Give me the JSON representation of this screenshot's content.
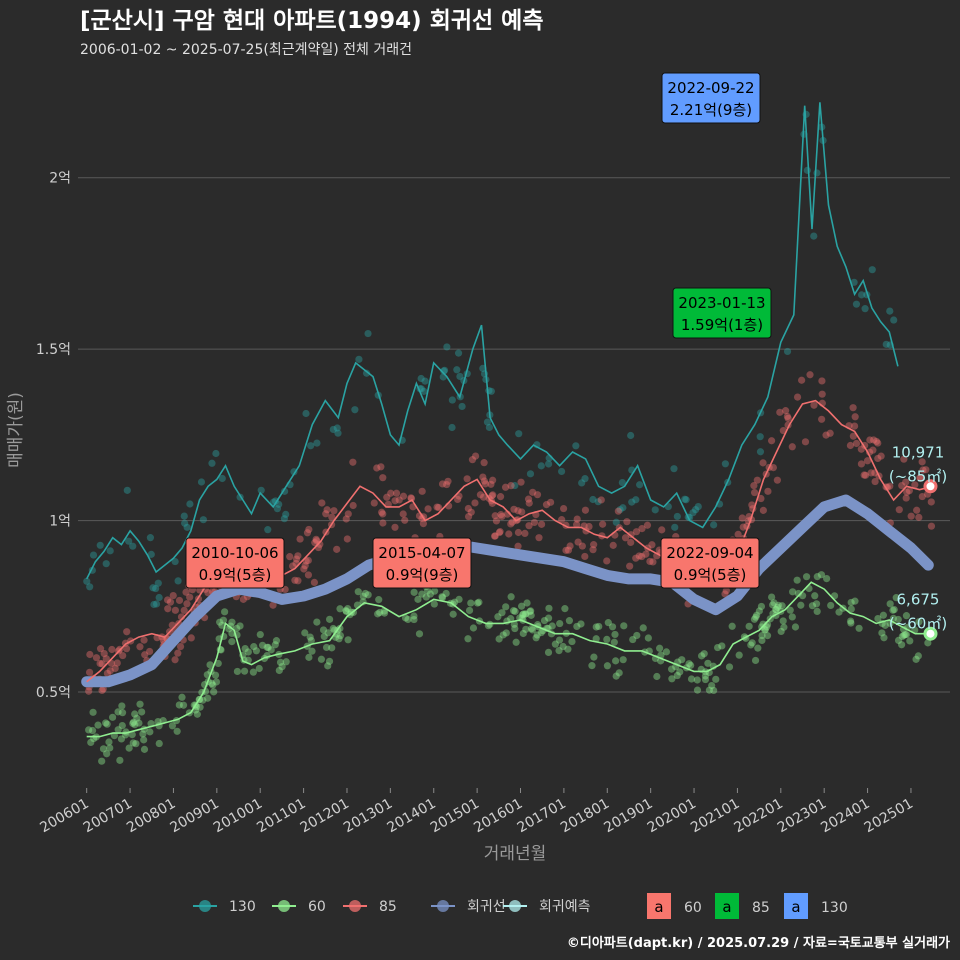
{
  "title": "[군산시] 구암 현대 아파트(1994) 회귀선 예측",
  "subtitle": "2006-01-02 ~ 2025-07-25(최근계약일) 전체 거래건",
  "caption": "©디아파트(dapt.kr) / 2025.07.29 / 자료=국토교통부 실거래가",
  "chart_data": {
    "type": "line",
    "xlabel": "거래년월",
    "ylabel": "매매가(원)",
    "x_tick_labels": [
      "200601",
      "200701",
      "200801",
      "200901",
      "201001",
      "201101",
      "201201",
      "201301",
      "201401",
      "201501",
      "201601",
      "201701",
      "201801",
      "201901",
      "202001",
      "202101",
      "202201",
      "202301",
      "202401",
      "202501"
    ],
    "y_tick_labels": [
      "0.5억",
      "1억",
      "1.5억",
      "2억"
    ],
    "y_ticks": [
      0.5,
      1.0,
      1.5,
      2.0
    ],
    "ylim": [
      0.22,
      2.32
    ],
    "xlim": [
      2005.8,
      2025.9
    ],
    "grid": true,
    "colors": {
      "s130": "#2aa3a3",
      "s60": "#90ee90",
      "s85": "#f0706f",
      "regression": "#7b93c7",
      "prediction": "#b2f0f0"
    },
    "series": [
      {
        "name": "130",
        "x": [
          2006.0,
          2006.2,
          2006.4,
          2006.6,
          2006.8,
          2007.0,
          2007.2,
          2007.4,
          2007.6,
          2007.8,
          2008.0,
          2008.2,
          2008.4,
          2008.6,
          2008.8,
          2009.0,
          2009.2,
          2009.4,
          2009.6,
          2009.8,
          2010.0,
          2010.3,
          2010.6,
          2010.9,
          2011.2,
          2011.5,
          2011.8,
          2012.0,
          2012.2,
          2012.4,
          2012.6,
          2012.8,
          2013.0,
          2013.2,
          2013.4,
          2013.6,
          2013.8,
          2014.0,
          2014.3,
          2014.6,
          2014.9,
          2015.1,
          2015.3,
          2015.5,
          2015.7,
          2016.0,
          2016.3,
          2016.6,
          2016.9,
          2017.2,
          2017.5,
          2017.8,
          2018.1,
          2018.4,
          2018.7,
          2019.0,
          2019.3,
          2019.6,
          2019.9,
          2020.2,
          2020.5,
          2020.8,
          2021.1,
          2021.4,
          2021.7,
          2022.0,
          2022.3,
          2022.55,
          2022.72,
          2022.9,
          2023.1,
          2023.3,
          2023.5,
          2023.7,
          2023.9,
          2024.1,
          2024.3,
          2024.5,
          2024.7
        ],
        "y": [
          0.83,
          0.88,
          0.91,
          0.95,
          0.93,
          0.97,
          0.94,
          0.9,
          0.85,
          0.87,
          0.89,
          0.92,
          0.97,
          1.06,
          1.1,
          1.12,
          1.16,
          1.1,
          1.06,
          1.02,
          1.08,
          1.04,
          1.1,
          1.16,
          1.28,
          1.35,
          1.3,
          1.4,
          1.46,
          1.44,
          1.42,
          1.34,
          1.25,
          1.22,
          1.32,
          1.4,
          1.34,
          1.46,
          1.42,
          1.36,
          1.5,
          1.57,
          1.3,
          1.25,
          1.22,
          1.18,
          1.22,
          1.2,
          1.16,
          1.2,
          1.18,
          1.1,
          1.08,
          1.1,
          1.16,
          1.06,
          1.04,
          1.08,
          1.0,
          0.98,
          1.04,
          1.12,
          1.22,
          1.28,
          1.36,
          1.52,
          1.6,
          2.21,
          1.85,
          2.22,
          1.92,
          1.8,
          1.74,
          1.66,
          1.7,
          1.62,
          1.58,
          1.55,
          1.45
        ]
      },
      {
        "name": "60",
        "x": [
          2006.0,
          2006.3,
          2006.6,
          2006.9,
          2007.2,
          2007.5,
          2007.8,
          2008.1,
          2008.4,
          2008.7,
          2009.0,
          2009.2,
          2009.4,
          2009.6,
          2009.8,
          2010.1,
          2010.4,
          2010.8,
          2011.2,
          2011.6,
          2012.0,
          2012.4,
          2012.8,
          2013.2,
          2013.6,
          2014.0,
          2014.4,
          2014.8,
          2015.2,
          2015.6,
          2016.0,
          2016.4,
          2016.8,
          2017.2,
          2017.6,
          2018.0,
          2018.4,
          2018.8,
          2019.2,
          2019.6,
          2020.0,
          2020.3,
          2020.6,
          2020.9,
          2021.2,
          2021.5,
          2021.8,
          2022.1,
          2022.4,
          2022.7,
          2023.0,
          2023.3,
          2023.6,
          2023.9,
          2024.2,
          2024.5,
          2024.8,
          2025.1,
          2025.4
        ],
        "y": [
          0.37,
          0.37,
          0.38,
          0.38,
          0.39,
          0.4,
          0.41,
          0.42,
          0.44,
          0.5,
          0.6,
          0.7,
          0.68,
          0.59,
          0.58,
          0.6,
          0.61,
          0.62,
          0.64,
          0.65,
          0.72,
          0.76,
          0.75,
          0.72,
          0.74,
          0.77,
          0.76,
          0.72,
          0.7,
          0.7,
          0.71,
          0.69,
          0.67,
          0.67,
          0.65,
          0.64,
          0.62,
          0.62,
          0.6,
          0.58,
          0.56,
          0.56,
          0.58,
          0.64,
          0.66,
          0.68,
          0.72,
          0.74,
          0.78,
          0.82,
          0.8,
          0.76,
          0.73,
          0.72,
          0.7,
          0.71,
          0.69,
          0.67,
          0.67
        ]
      },
      {
        "name": "85",
        "x": [
          2006.0,
          2006.3,
          2006.6,
          2006.9,
          2007.2,
          2007.5,
          2007.8,
          2008.1,
          2008.4,
          2008.7,
          2009.0,
          2009.3,
          2009.6,
          2009.9,
          2010.2,
          2010.5,
          2010.8,
          2011.1,
          2011.4,
          2011.7,
          2012.0,
          2012.3,
          2012.6,
          2012.9,
          2013.2,
          2013.5,
          2013.8,
          2014.1,
          2014.4,
          2014.7,
          2015.0,
          2015.3,
          2015.6,
          2015.9,
          2016.2,
          2016.5,
          2016.8,
          2017.1,
          2017.4,
          2017.7,
          2018.0,
          2018.3,
          2018.6,
          2018.9,
          2019.2,
          2019.5,
          2019.8,
          2020.1,
          2020.4,
          2020.7,
          2021.0,
          2021.3,
          2021.6,
          2021.9,
          2022.2,
          2022.5,
          2022.8,
          2023.1,
          2023.4,
          2023.7,
          2024.0,
          2024.3,
          2024.6,
          2024.9,
          2025.2,
          2025.5
        ],
        "y": [
          0.53,
          0.56,
          0.6,
          0.64,
          0.66,
          0.67,
          0.66,
          0.7,
          0.74,
          0.8,
          0.86,
          0.88,
          0.86,
          0.84,
          0.82,
          0.84,
          0.86,
          0.9,
          0.94,
          1.0,
          1.05,
          1.1,
          1.08,
          1.04,
          1.04,
          1.06,
          1.0,
          1.02,
          1.06,
          1.1,
          1.12,
          1.06,
          1.04,
          1.0,
          1.02,
          1.03,
          1.0,
          0.98,
          0.98,
          0.96,
          0.95,
          0.98,
          0.95,
          0.92,
          0.9,
          0.88,
          0.86,
          0.84,
          0.83,
          0.86,
          0.9,
          1.0,
          1.12,
          1.2,
          1.28,
          1.34,
          1.35,
          1.32,
          1.28,
          1.26,
          1.2,
          1.12,
          1.06,
          1.1,
          1.09,
          1.1
        ]
      },
      {
        "name": "회귀선",
        "x": [
          2006.0,
          2006.5,
          2007.0,
          2007.5,
          2008.0,
          2008.5,
          2009.0,
          2009.5,
          2010.0,
          2010.5,
          2011.0,
          2011.5,
          2012.0,
          2012.5,
          2013.0,
          2013.5,
          2014.0,
          2014.5,
          2015.0,
          2015.5,
          2016.0,
          2016.5,
          2017.0,
          2017.5,
          2018.0,
          2018.5,
          2019.0,
          2019.5,
          2020.0,
          2020.5,
          2021.0,
          2021.5,
          2022.0,
          2022.5,
          2023.0,
          2023.5,
          2024.0,
          2024.5,
          2025.0,
          2025.4
        ],
        "y": [
          0.53,
          0.53,
          0.55,
          0.58,
          0.65,
          0.72,
          0.78,
          0.8,
          0.79,
          0.77,
          0.78,
          0.8,
          0.83,
          0.87,
          0.89,
          0.91,
          0.93,
          0.93,
          0.92,
          0.91,
          0.9,
          0.89,
          0.88,
          0.86,
          0.84,
          0.83,
          0.83,
          0.82,
          0.77,
          0.74,
          0.78,
          0.86,
          0.92,
          0.98,
          1.04,
          1.06,
          1.02,
          0.97,
          0.92,
          0.87
        ]
      },
      {
        "name": "회귀예측",
        "x": [
          2025.45
        ],
        "y": [
          0.67
        ]
      }
    ],
    "annotations": [
      {
        "date": "2010-10-06",
        "value": "0.9억(5층)",
        "series": "60"
      },
      {
        "date": "2015-04-07",
        "value": "0.9억(9층)",
        "series": "60"
      },
      {
        "date": "2022-09-04",
        "value": "0.9억(5층)",
        "series": "60"
      },
      {
        "date": "2022-09-22",
        "value": "2.21억(9층)",
        "series": "130"
      },
      {
        "date": "2023-01-13",
        "value": "1.59억(1층)",
        "series": "85"
      }
    ],
    "end_labels": [
      {
        "value": "10,971",
        "area": "(~85㎡)",
        "y": 1.1
      },
      {
        "value": "6,675",
        "area": "(~60㎡)",
        "y": 0.67
      }
    ],
    "legend": {
      "position": "bottom",
      "line_items": [
        "130",
        "60",
        "85",
        "회귀선",
        "회귀예측"
      ],
      "box_items": [
        {
          "glyph": "a",
          "label": "60"
        },
        {
          "glyph": "a",
          "label": "85"
        },
        {
          "glyph": "a",
          "label": "130"
        }
      ]
    }
  }
}
